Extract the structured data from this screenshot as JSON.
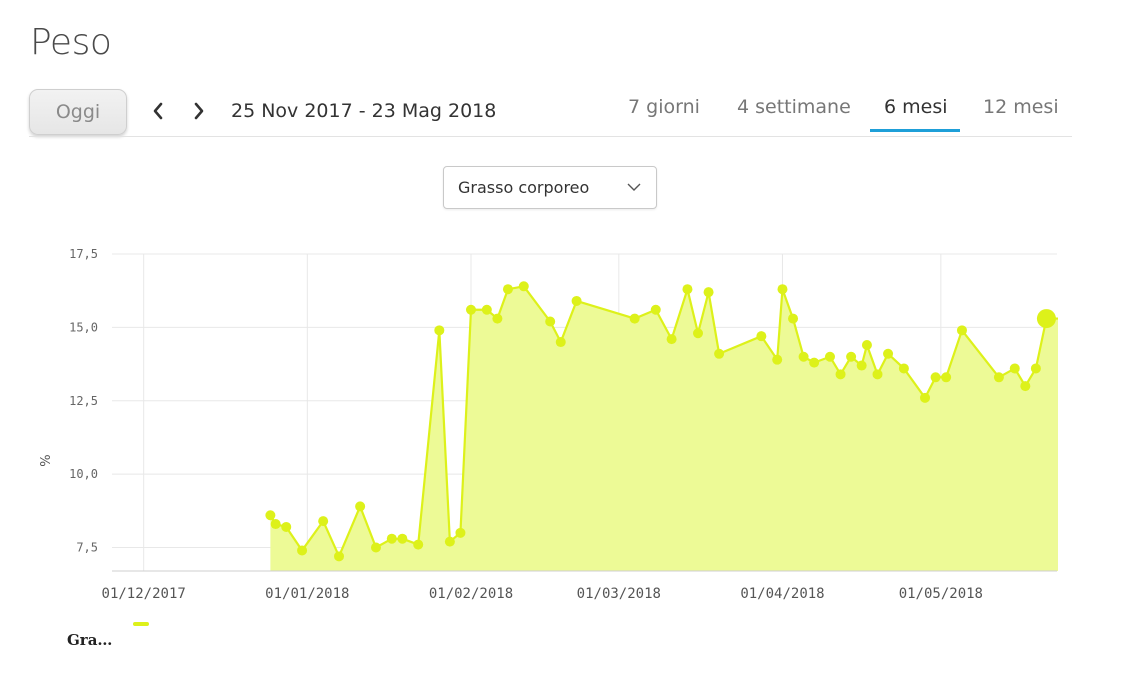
{
  "page": {
    "title": "Peso"
  },
  "toolbar": {
    "today_label": "Oggi",
    "prev_icon": "chevron-left-icon",
    "next_icon": "chevron-right-icon",
    "date_range": "25 Nov 2017 - 23 Mag 2018"
  },
  "period_tabs": [
    {
      "label": "7 giorni",
      "active": false
    },
    {
      "label": "4 settimane",
      "active": false
    },
    {
      "label": "6 mesi",
      "active": true
    },
    {
      "label": "12 mesi",
      "active": false
    }
  ],
  "metric_select": {
    "value": "Grasso corporeo",
    "icon": "chevron-down-icon"
  },
  "colors": {
    "series_line": "#ddf11a",
    "series_fill": "#edfa96",
    "active_tab": "#1e9fd8"
  },
  "legend": {
    "label": "Gra…"
  },
  "chart_data": {
    "type": "area",
    "ylabel": "%",
    "ylim": [
      6.7,
      17.5
    ],
    "yticks": [
      7.5,
      10.0,
      12.5,
      15.0,
      17.5
    ],
    "ytick_labels": [
      "7,5",
      "10,0",
      "12,5",
      "15,0",
      "17,5"
    ],
    "xlim": [
      "2017-11-25",
      "2018-05-23"
    ],
    "xticks": [
      "2017-12-01",
      "2018-01-01",
      "2018-02-01",
      "2018-03-01",
      "2018-04-01",
      "2018-05-01"
    ],
    "xtick_labels": [
      "01/12/2017",
      "01/01/2018",
      "01/02/2018",
      "01/03/2018",
      "01/04/2018",
      "01/05/2018"
    ],
    "grid": true,
    "legend_position": "bottom-left",
    "series": [
      {
        "points": [
          [
            "2017-12-25",
            8.6
          ],
          [
            "2017-12-26",
            8.3
          ],
          [
            "2017-12-28",
            8.2
          ],
          [
            "2017-12-31",
            7.4
          ],
          [
            "2018-01-04",
            8.4
          ],
          [
            "2018-01-07",
            7.2
          ],
          [
            "2018-01-11",
            8.9
          ],
          [
            "2018-01-14",
            7.5
          ],
          [
            "2018-01-17",
            7.8
          ],
          [
            "2018-01-19",
            7.8
          ],
          [
            "2018-01-22",
            7.6
          ],
          [
            "2018-01-26",
            14.9
          ],
          [
            "2018-01-28",
            7.7
          ],
          [
            "2018-01-30",
            8.0
          ],
          [
            "2018-02-01",
            15.6
          ],
          [
            "2018-02-04",
            15.6
          ],
          [
            "2018-02-06",
            15.3
          ],
          [
            "2018-02-08",
            16.3
          ],
          [
            "2018-02-11",
            16.4
          ],
          [
            "2018-02-16",
            15.2
          ],
          [
            "2018-02-18",
            14.5
          ],
          [
            "2018-02-21",
            15.9
          ],
          [
            "2018-03-04",
            15.3
          ],
          [
            "2018-03-08",
            15.6
          ],
          [
            "2018-03-11",
            14.6
          ],
          [
            "2018-03-14",
            16.3
          ],
          [
            "2018-03-16",
            14.8
          ],
          [
            "2018-03-18",
            16.2
          ],
          [
            "2018-03-20",
            14.1
          ],
          [
            "2018-03-28",
            14.7
          ],
          [
            "2018-03-31",
            13.9
          ],
          [
            "2018-04-01",
            16.3
          ],
          [
            "2018-04-03",
            15.3
          ],
          [
            "2018-04-05",
            14.0
          ],
          [
            "2018-04-07",
            13.8
          ],
          [
            "2018-04-10",
            14.0
          ],
          [
            "2018-04-12",
            13.4
          ],
          [
            "2018-04-14",
            14.0
          ],
          [
            "2018-04-16",
            13.7
          ],
          [
            "2018-04-17",
            14.4
          ],
          [
            "2018-04-19",
            13.4
          ],
          [
            "2018-04-21",
            14.1
          ],
          [
            "2018-04-24",
            13.6
          ],
          [
            "2018-04-28",
            12.6
          ],
          [
            "2018-04-30",
            13.3
          ],
          [
            "2018-05-02",
            13.3
          ],
          [
            "2018-05-05",
            14.9
          ],
          [
            "2018-05-12",
            13.3
          ],
          [
            "2018-05-15",
            13.6
          ],
          [
            "2018-05-17",
            13.0
          ],
          [
            "2018-05-19",
            13.6
          ],
          [
            "2018-05-21",
            15.3
          ]
        ],
        "highlight_last": true
      }
    ]
  }
}
